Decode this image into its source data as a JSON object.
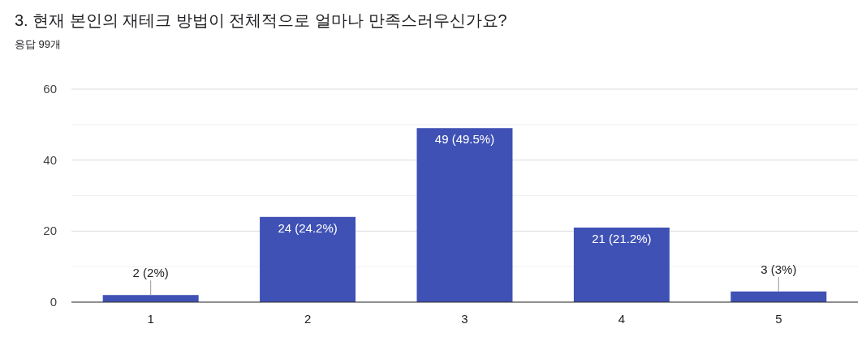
{
  "chart_data": {
    "type": "bar",
    "title": "3. 현재 본인의 재테크 방법이 전체적으로 얼마나 만족스러우신가요?",
    "subtitle": "응답 99개",
    "categories": [
      "1",
      "2",
      "3",
      "4",
      "5"
    ],
    "values": [
      2,
      24,
      49,
      21,
      3
    ],
    "value_labels": [
      "2 (2%)",
      "24 (24.2%)",
      "49 (49.5%)",
      "21 (21.2%)",
      "3 (3%)"
    ],
    "color": "#3f51b5",
    "ylim": [
      0,
      60
    ],
    "yticks": [
      0,
      {
        "value": 10,
        "label": null
      },
      20,
      {
        "value": 30,
        "label": null
      },
      40,
      {
        "value": 50,
        "label": null
      },
      60
    ],
    "grid": true
  }
}
